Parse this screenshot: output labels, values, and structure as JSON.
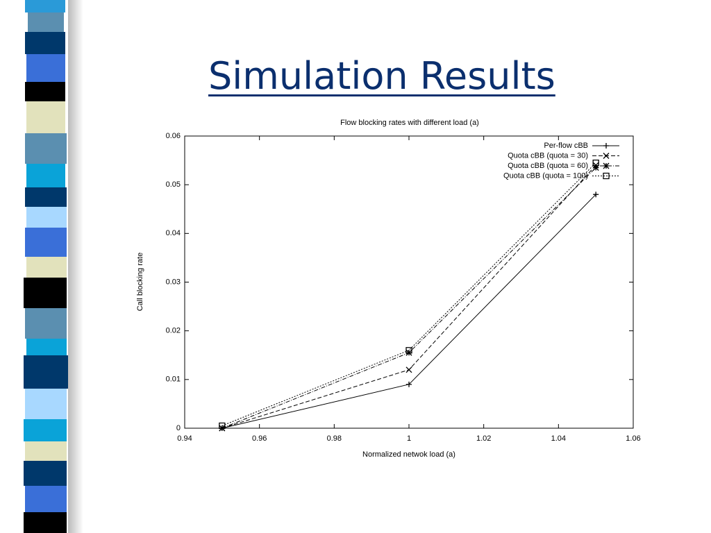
{
  "title": "Simulation Results",
  "chart_data": {
    "type": "line",
    "title": "Flow blocking rates with different load (a)",
    "x_label": "Normalized netwok load (a)",
    "y_label": "Call blocking rate",
    "x": [
      0.95,
      1,
      1.05
    ],
    "series": [
      {
        "name": "Per-flow cBB",
        "color": "#000000",
        "marker": "plus",
        "style": "solid",
        "values": [
          0,
          0.009,
          0.048
        ]
      },
      {
        "name": "Quota cBB (quota = 30)",
        "color": "#000000",
        "marker": "cross",
        "style": "dashed",
        "values": [
          0,
          0.012,
          0.054
        ]
      },
      {
        "name": "Quota cBB (quota = 60)",
        "color": "#000000",
        "marker": "star",
        "style": "dashdot",
        "values": [
          0,
          0.0155,
          0.0535
        ]
      },
      {
        "name": "Quota cBB (quota = 100)",
        "color": "#000000",
        "marker": "square",
        "style": "dotted",
        "values": [
          0.0005,
          0.016,
          0.0545
        ]
      }
    ],
    "xlim": [
      0.94,
      1.06
    ],
    "xticks": [
      0.94,
      0.96,
      0.98,
      1,
      1.02,
      1.04,
      1.06
    ],
    "ylim": [
      0,
      0.06
    ],
    "yticks": [
      0,
      0.01,
      0.02,
      0.03,
      0.04,
      0.05,
      0.06
    ],
    "legend": "upper-right"
  }
}
